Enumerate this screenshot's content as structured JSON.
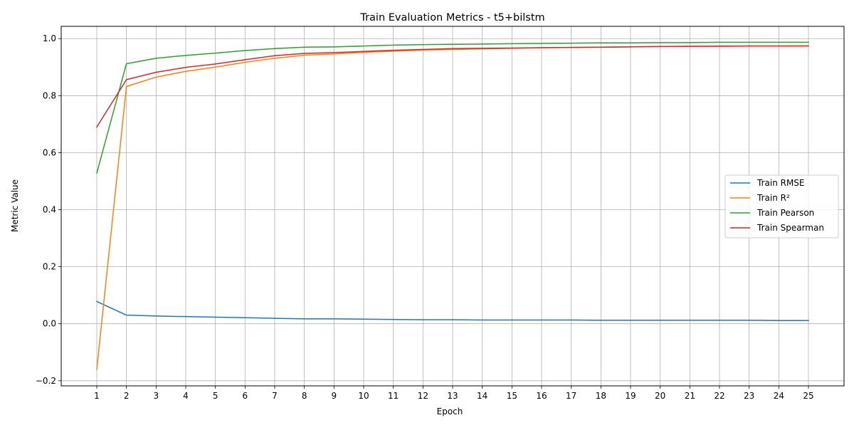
{
  "chart_data": {
    "type": "line",
    "title": "Train Evaluation Metrics - t5+bilstm",
    "xlabel": "Epoch",
    "ylabel": "Metric Value",
    "x": [
      1,
      2,
      3,
      4,
      5,
      6,
      7,
      8,
      9,
      10,
      11,
      12,
      13,
      14,
      15,
      16,
      17,
      18,
      19,
      20,
      21,
      22,
      23,
      24,
      25
    ],
    "xlim": [
      -0.2,
      26.2
    ],
    "ylim": [
      -0.218,
      1.043
    ],
    "yticks": [
      -0.2,
      0.0,
      0.2,
      0.4,
      0.6,
      0.8,
      1.0
    ],
    "ytick_labels": [
      "−0.2",
      "0.0",
      "0.2",
      "0.4",
      "0.6",
      "0.8",
      "1.0"
    ],
    "grid": true,
    "legend_position": "center-right",
    "series": [
      {
        "name": "Train RMSE",
        "color": "#1f77b4",
        "values": [
          0.078,
          0.03,
          0.027,
          0.025,
          0.023,
          0.021,
          0.019,
          0.017,
          0.017,
          0.016,
          0.015,
          0.014,
          0.014,
          0.013,
          0.013,
          0.013,
          0.013,
          0.012,
          0.012,
          0.012,
          0.012,
          0.012,
          0.012,
          0.011,
          0.011
        ]
      },
      {
        "name": "Train R²",
        "color": "#ff7f0e",
        "values": [
          -0.16,
          0.832,
          0.865,
          0.885,
          0.9,
          0.917,
          0.931,
          0.942,
          0.946,
          0.952,
          0.956,
          0.96,
          0.962,
          0.964,
          0.966,
          0.968,
          0.969,
          0.97,
          0.971,
          0.972,
          0.973,
          0.974,
          0.974,
          0.974,
          0.975
        ]
      },
      {
        "name": "Train Pearson",
        "color": "#2ca02c",
        "values": [
          0.528,
          0.912,
          0.931,
          0.941,
          0.949,
          0.958,
          0.965,
          0.97,
          0.971,
          0.974,
          0.977,
          0.979,
          0.98,
          0.981,
          0.982,
          0.983,
          0.984,
          0.985,
          0.985,
          0.986,
          0.986,
          0.987,
          0.987,
          0.987,
          0.987
        ]
      },
      {
        "name": "Train Spearman",
        "color": "#d62728",
        "values": [
          0.69,
          0.856,
          0.882,
          0.899,
          0.911,
          0.926,
          0.94,
          0.948,
          0.951,
          0.955,
          0.959,
          0.962,
          0.965,
          0.966,
          0.967,
          0.968,
          0.969,
          0.97,
          0.971,
          0.972,
          0.973,
          0.973,
          0.974,
          0.974,
          0.974
        ]
      }
    ]
  }
}
